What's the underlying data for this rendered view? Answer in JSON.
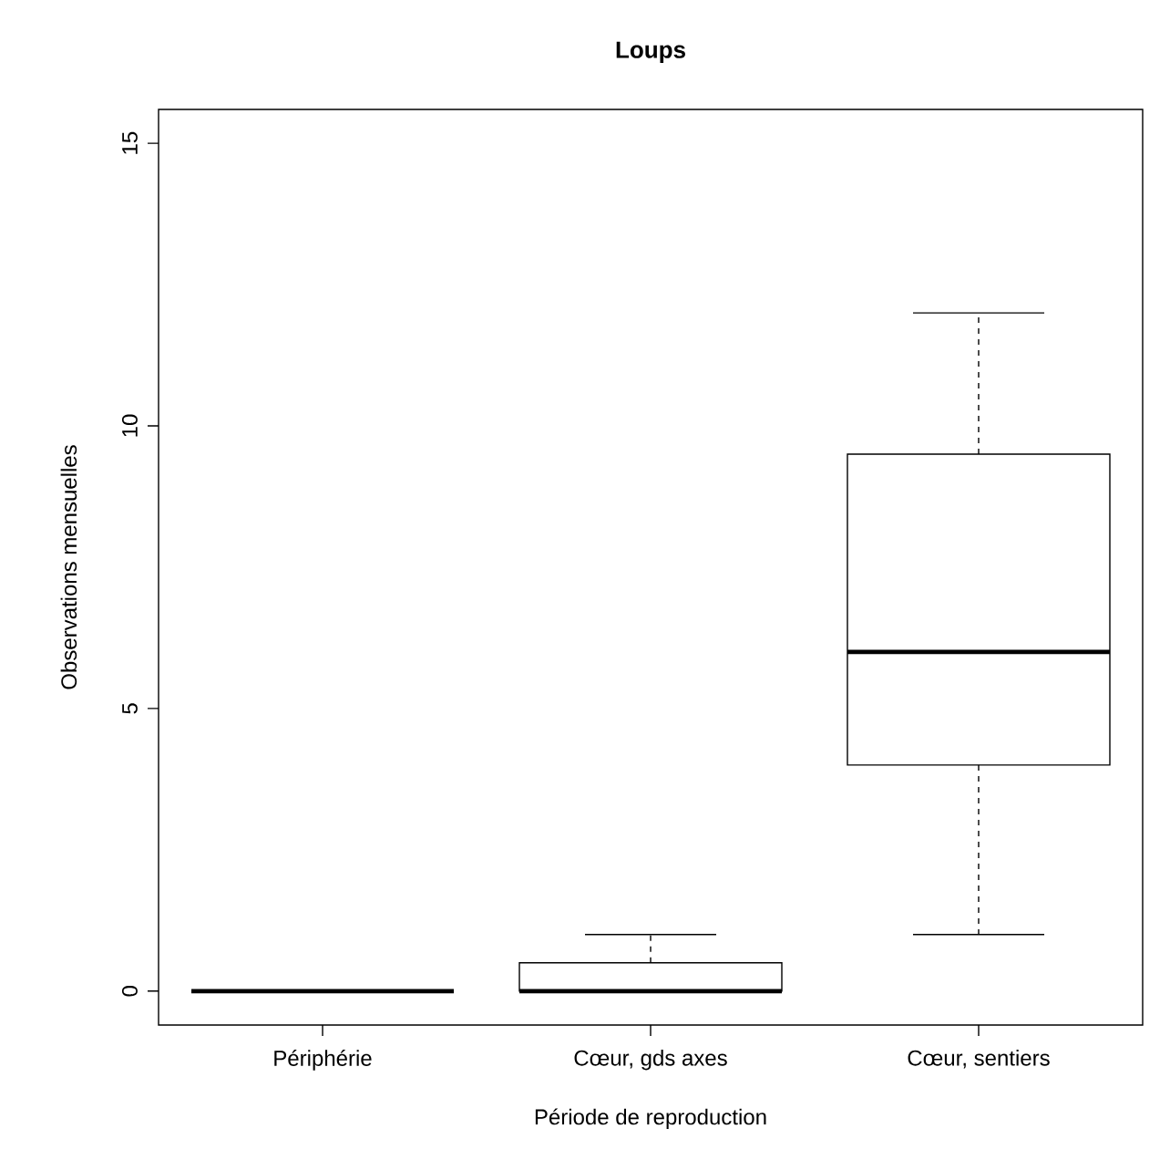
{
  "chart_data": {
    "type": "box",
    "title": "Loups",
    "xlabel": "Période de reproduction",
    "ylabel": "Observations mensuelles",
    "categories": [
      "Périphérie",
      "Cœur, gds axes",
      "Cœur, sentiers"
    ],
    "boxes": [
      {
        "low": 0,
        "q1": 0,
        "median": 0,
        "q3": 0,
        "high": 0
      },
      {
        "low": 0,
        "q1": 0,
        "median": 0,
        "q3": 0.5,
        "high": 1
      },
      {
        "low": 1,
        "q1": 4,
        "median": 6,
        "q3": 9.5,
        "high": 12
      }
    ],
    "color": "#000000",
    "ylim": [
      -0.6,
      15.6
    ],
    "yticks": [
      0,
      5,
      10,
      15
    ]
  }
}
